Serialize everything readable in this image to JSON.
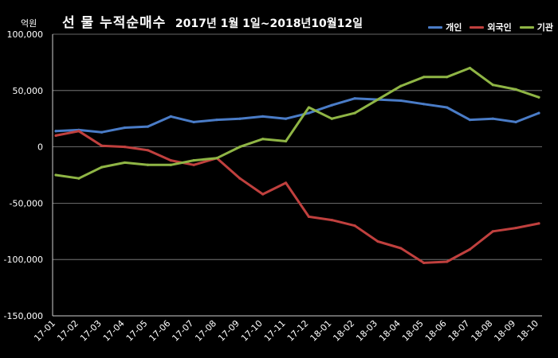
{
  "chart_data": {
    "type": "line",
    "title": "선 물 누적순매수",
    "subtitle": "2017년 1월 1일~2018년10월12일",
    "ylabel": "억원",
    "xlabel": "",
    "ylim": [
      -150000,
      100000
    ],
    "yticks": [
      "100,000",
      "50,000",
      "0",
      "-50,000",
      "-100,000",
      "-150,000"
    ],
    "ytick_values": [
      100000,
      50000,
      0,
      -50000,
      -100000,
      -150000
    ],
    "categories": [
      "17-01",
      "17-02",
      "17-03",
      "17-04",
      "17-05",
      "17-06",
      "17-07",
      "17-08",
      "17-09",
      "17-10",
      "17-11",
      "17-12",
      "18-01",
      "18-02",
      "18-03",
      "18-04",
      "18-05",
      "18-06",
      "18-07",
      "18-08",
      "18-09",
      "18-10"
    ],
    "grid": true,
    "legend_position": "top-right",
    "series": [
      {
        "name": "개인",
        "color": "#4a7cc7",
        "values": [
          14000,
          15000,
          13000,
          17000,
          18000,
          27000,
          22000,
          24000,
          25000,
          27000,
          25000,
          30000,
          37000,
          43000,
          42000,
          41000,
          38000,
          35000,
          24000,
          25000,
          22000,
          30000
        ]
      },
      {
        "name": "외국인",
        "color": "#c0403e",
        "values": [
          10000,
          14000,
          1000,
          0,
          -3000,
          -12000,
          -16000,
          -10000,
          -28000,
          -42000,
          -32000,
          -62000,
          -65000,
          -70000,
          -84000,
          -90000,
          -103000,
          -102000,
          -91000,
          -75000,
          -72000,
          -68000
        ]
      },
      {
        "name": "기관",
        "color": "#8fb545",
        "values": [
          -25000,
          -28000,
          -18000,
          -14000,
          -16000,
          -16000,
          -12000,
          -10000,
          0,
          7000,
          5000,
          35000,
          25000,
          30000,
          42000,
          54000,
          62000,
          62000,
          70000,
          55000,
          51000,
          44000
        ]
      }
    ]
  }
}
